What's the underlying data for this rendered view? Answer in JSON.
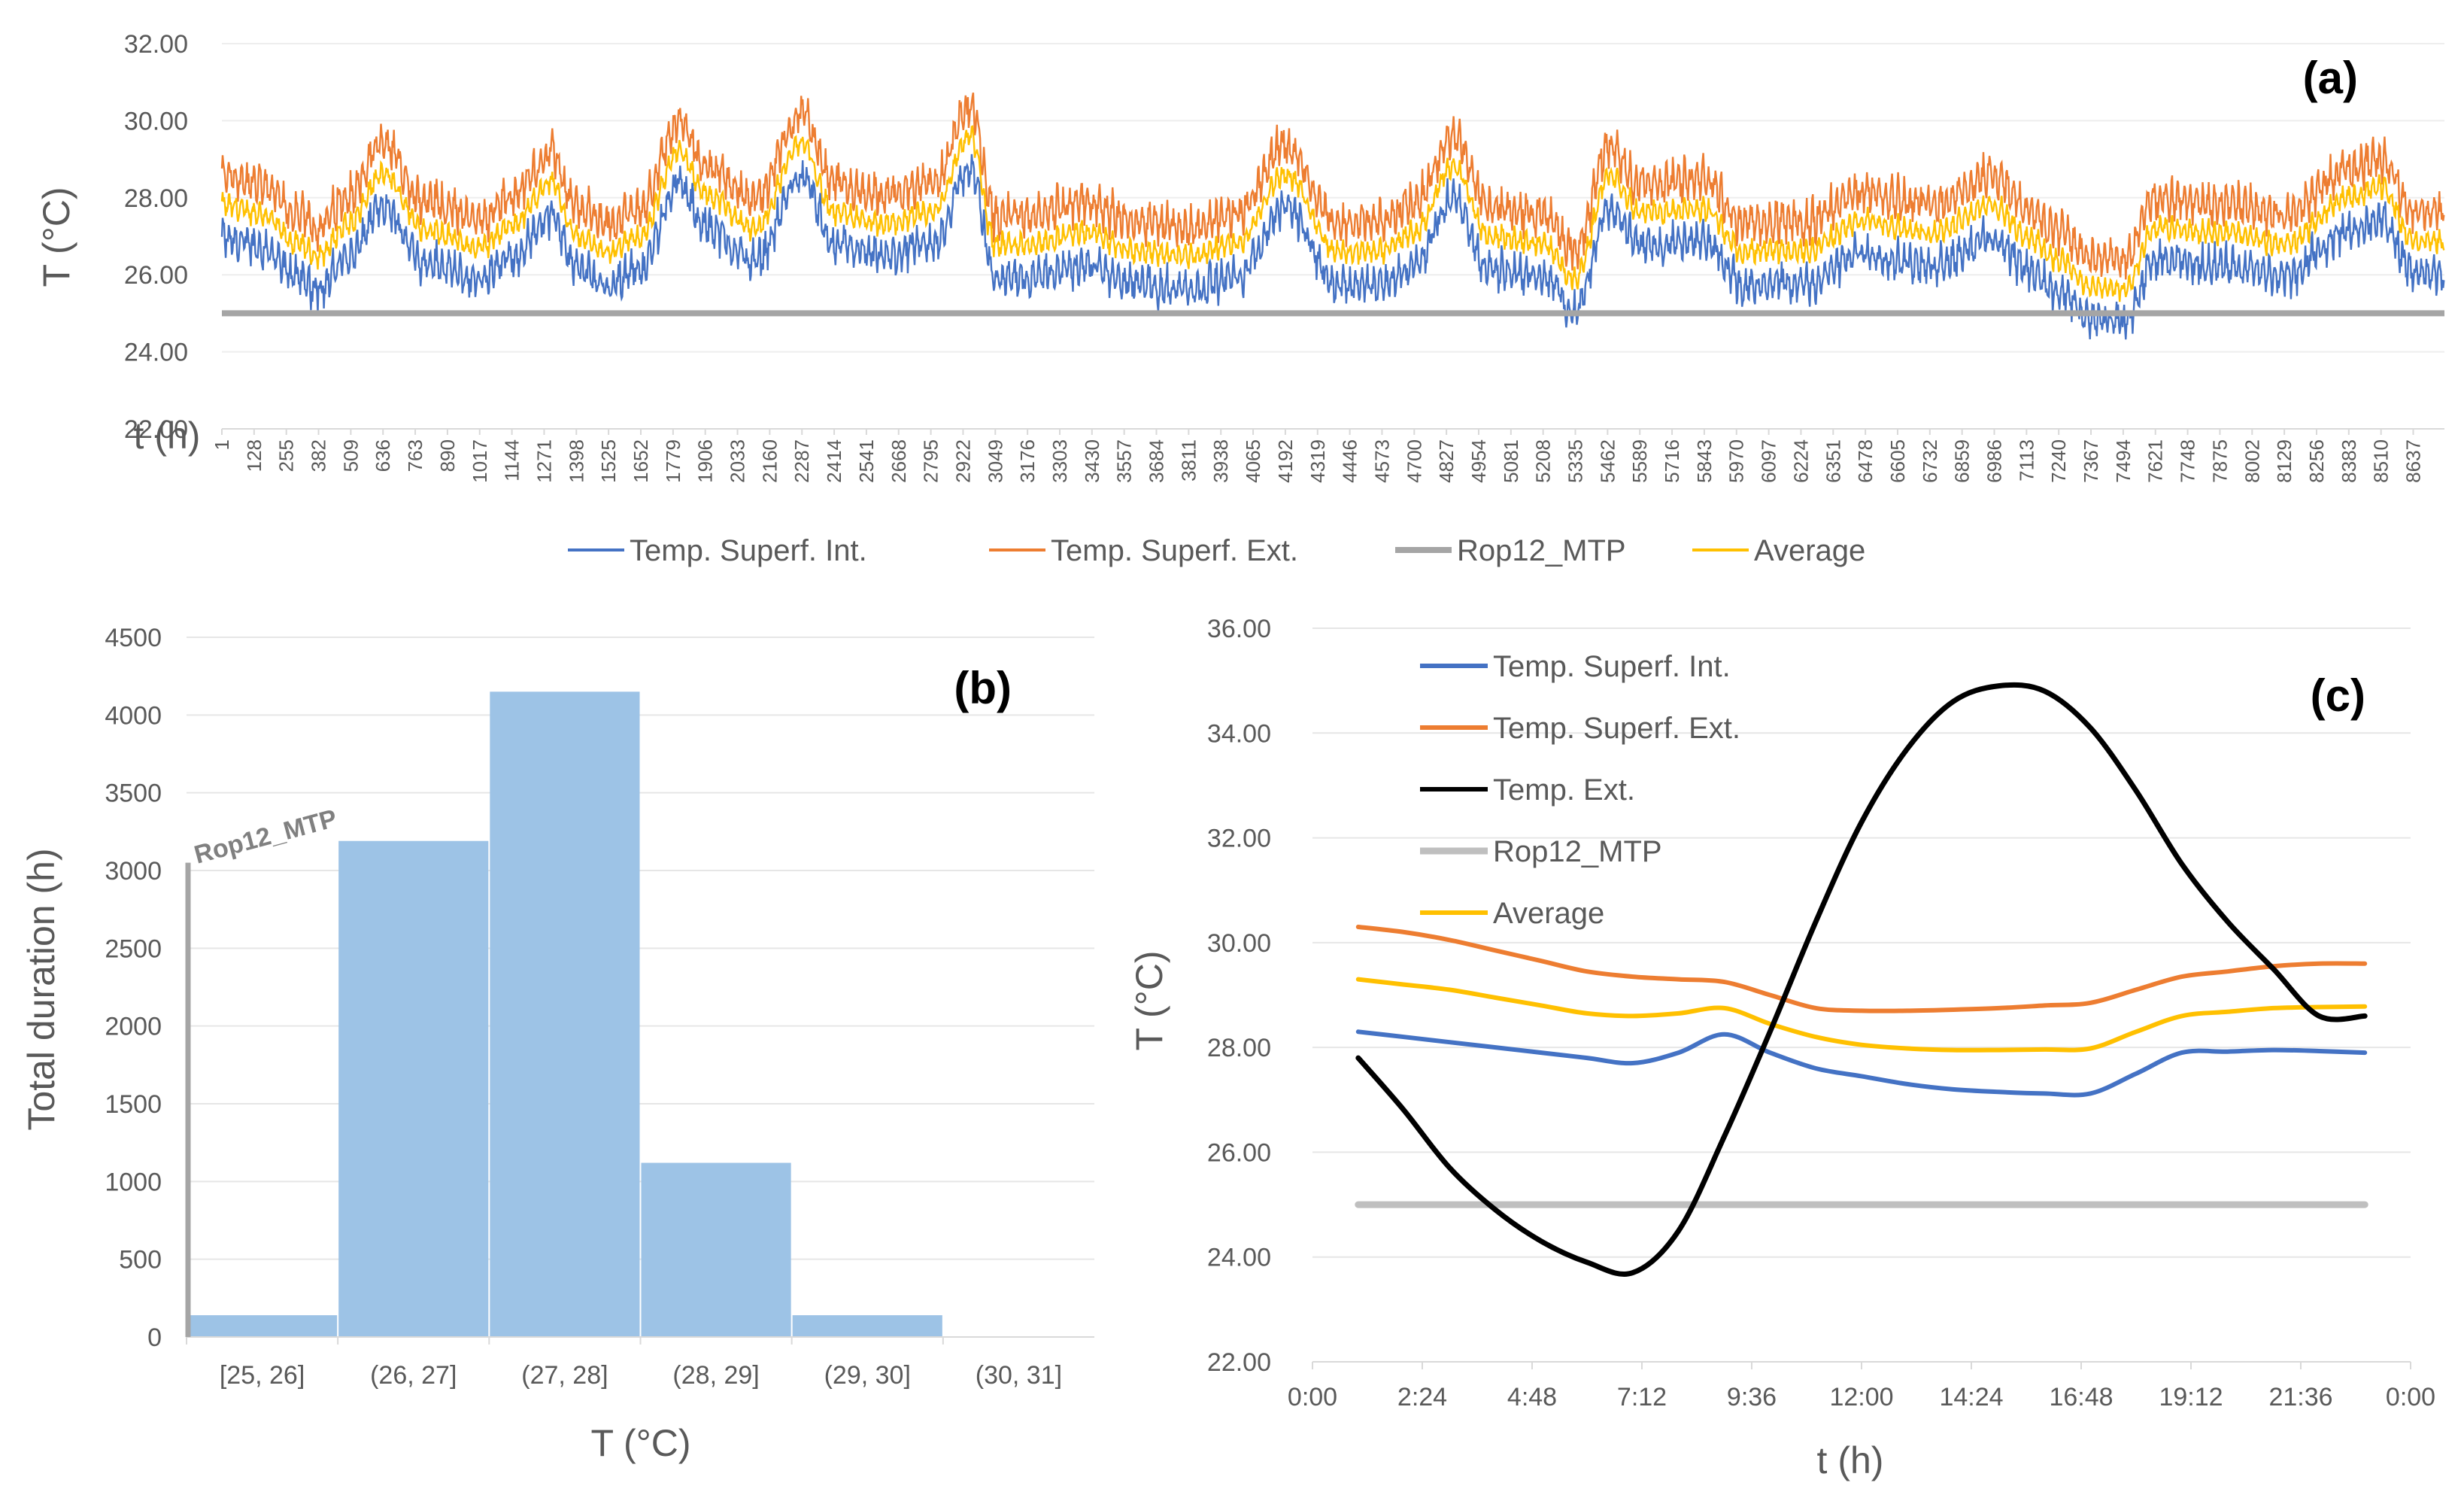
{
  "chart_data": [
    {
      "id": "a",
      "type": "line",
      "panel_label": "(a)",
      "xlabel": "t (h)",
      "ylabel": "T (°C)",
      "ylim": [
        22,
        32
      ],
      "y_ticks": [
        "22.00",
        "24.00",
        "26.00",
        "28.00",
        "30.00",
        "32.00"
      ],
      "x_range": [
        1,
        8760
      ],
      "x_ticks": [
        "1",
        "128",
        "255",
        "382",
        "509",
        "636",
        "763",
        "890",
        "1017",
        "1144",
        "1271",
        "1398",
        "1525",
        "1652",
        "1779",
        "1906",
        "2033",
        "2160",
        "2287",
        "2414",
        "2541",
        "2668",
        "2795",
        "2922",
        "3049",
        "3176",
        "3303",
        "3430",
        "3557",
        "3684",
        "3811",
        "3938",
        "4065",
        "4192",
        "4319",
        "4446",
        "4573",
        "4700",
        "4827",
        "4954",
        "5081",
        "5208",
        "5335",
        "5462",
        "5589",
        "5716",
        "5843",
        "5970",
        "6097",
        "6224",
        "6351",
        "6478",
        "6605",
        "6732",
        "6859",
        "6986",
        "7113",
        "7240",
        "7367",
        "7494",
        "7621",
        "7748",
        "7875",
        "8002",
        "8129",
        "8256",
        "8383",
        "8510",
        "8637"
      ],
      "legend_position": "bottom",
      "series": [
        {
          "name": "Temp. Superf. Int.",
          "color": "#4472C4",
          "stat": "range approx. 24.2 – 29.0 °C"
        },
        {
          "name": "Temp. Superf. Ext.",
          "color": "#ED7D31",
          "stat": "range approx. 26.0 – 30.8 °C"
        },
        {
          "name": "Rop12_MTP",
          "color": "#A5A5A5",
          "value": 25.0
        },
        {
          "name": "Average",
          "color": "#FFC000",
          "stat": "range approx. 25.0 – 29.9 °C"
        }
      ],
      "envelope": {
        "x": [
          1,
          150,
          300,
          382,
          500,
          636,
          800,
          1017,
          1144,
          1300,
          1398,
          1525,
          1652,
          1800,
          1906,
          2100,
          2287,
          2414,
          2600,
          2800,
          2950,
          3049,
          3176,
          3400,
          3600,
          3811,
          4000,
          4192,
          4400,
          4573,
          4700,
          4850,
          5000,
          5208,
          5335,
          5470,
          5600,
          5843,
          6000,
          6224,
          6478,
          6732,
          6986,
          7113,
          7240,
          7367,
          7494,
          7621,
          7875,
          8129,
          8383,
          8510,
          8637,
          8760
        ],
        "avg": [
          27.8,
          27.6,
          26.8,
          26.5,
          27.3,
          28.6,
          27.2,
          26.7,
          27.3,
          28.4,
          27.0,
          26.6,
          27.0,
          29.2,
          28.1,
          27.2,
          29.4,
          27.6,
          27.3,
          27.6,
          29.6,
          26.8,
          26.8,
          27.1,
          26.6,
          26.5,
          26.8,
          28.6,
          26.6,
          26.6,
          27.1,
          28.8,
          27.0,
          26.8,
          25.9,
          28.6,
          27.6,
          27.7,
          26.6,
          26.6,
          27.4,
          27.1,
          27.8,
          27.0,
          26.4,
          25.7,
          25.6,
          27.2,
          27.1,
          26.8,
          28.0,
          28.3,
          26.9,
          26.9
        ],
        "min": 24.2,
        "max": 30.8
      }
    },
    {
      "id": "b",
      "type": "bar",
      "panel_label": "(b)",
      "xlabel": "T (°C)",
      "ylabel": "Total duration (h)",
      "ylim": [
        0,
        4500
      ],
      "y_ticks": [
        "0",
        "500",
        "1000",
        "1500",
        "2000",
        "2500",
        "3000",
        "3500",
        "4000",
        "4500"
      ],
      "categories": [
        "[25, 26]",
        "(26, 27]",
        "(27, 28]",
        "(28, 29]",
        "(29, 30]",
        "(30, 31]"
      ],
      "values": [
        140,
        3190,
        4150,
        1120,
        140,
        0
      ],
      "bar_color": "#9DC3E6",
      "reference_line": {
        "label": "Rop12_MTP",
        "x": 25.0,
        "color": "#A5A5A5"
      }
    },
    {
      "id": "c",
      "type": "line",
      "panel_label": "(c)",
      "xlabel": "t (h)",
      "ylabel": "T (°C)",
      "ylim": [
        22,
        36
      ],
      "y_ticks": [
        "22.00",
        "24.00",
        "26.00",
        "28.00",
        "30.00",
        "32.00",
        "34.00",
        "36.00"
      ],
      "xlim_hours": [
        0,
        24
      ],
      "x_ticks": [
        "0:00",
        "2:24",
        "4:48",
        "7:12",
        "9:36",
        "12:00",
        "14:24",
        "16:48",
        "19:12",
        "21:36",
        "0:00"
      ],
      "legend_position": "top-left",
      "x_hours": [
        1,
        2,
        3,
        4,
        5,
        6,
        7,
        8,
        9,
        10,
        11,
        12,
        13,
        14,
        15,
        16,
        17,
        18,
        19,
        20,
        21,
        22,
        23
      ],
      "series": [
        {
          "name": "Temp. Superf. Int.",
          "color": "#4472C4",
          "values": [
            28.3,
            28.2,
            28.1,
            28.0,
            27.9,
            27.8,
            27.7,
            27.9,
            28.25,
            27.9,
            27.6,
            27.45,
            27.3,
            27.2,
            27.15,
            27.12,
            27.12,
            27.5,
            27.9,
            27.92,
            27.95,
            27.93,
            27.9
          ]
        },
        {
          "name": "Temp. Superf. Ext.",
          "color": "#ED7D31",
          "values": [
            30.3,
            30.2,
            30.05,
            29.85,
            29.65,
            29.45,
            29.35,
            29.3,
            29.25,
            29.0,
            28.75,
            28.7,
            28.7,
            28.72,
            28.75,
            28.8,
            28.85,
            29.1,
            29.35,
            29.45,
            29.55,
            29.6,
            29.6
          ]
        },
        {
          "name": "Temp. Ext.",
          "color": "#000000",
          "values": [
            27.8,
            26.8,
            25.7,
            24.9,
            24.3,
            23.9,
            23.7,
            24.5,
            26.3,
            28.3,
            30.4,
            32.3,
            33.7,
            34.6,
            34.9,
            34.8,
            34.1,
            32.9,
            31.5,
            30.4,
            29.5,
            28.6,
            28.6
          ]
        },
        {
          "name": "Rop12_MTP",
          "color": "#BFBFBF",
          "values": [
            25,
            25,
            25,
            25,
            25,
            25,
            25,
            25,
            25,
            25,
            25,
            25,
            25,
            25,
            25,
            25,
            25,
            25,
            25,
            25,
            25,
            25,
            25
          ]
        },
        {
          "name": "Average",
          "color": "#FFC000",
          "values": [
            29.3,
            29.2,
            29.1,
            28.95,
            28.8,
            28.65,
            28.6,
            28.65,
            28.75,
            28.45,
            28.2,
            28.05,
            27.98,
            27.95,
            27.95,
            27.96,
            27.98,
            28.3,
            28.6,
            28.68,
            28.75,
            28.77,
            28.78
          ]
        }
      ]
    }
  ]
}
